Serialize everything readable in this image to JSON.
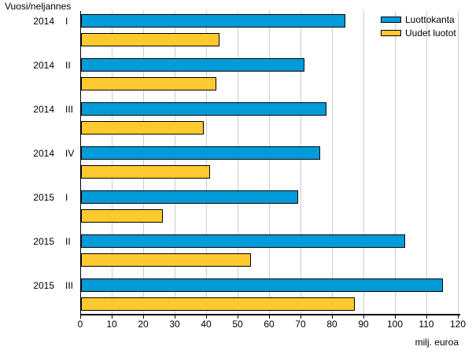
{
  "chart_data": {
    "type": "bar",
    "orientation": "horizontal",
    "title": "",
    "ylabel": "Vuosi/neljannes",
    "xlabel": "milj. euroa",
    "categories": [
      "2014 I",
      "2014 II",
      "2014 III",
      "2014 IV",
      "2015 I",
      "2015 II",
      "2015 III"
    ],
    "category_parts": [
      {
        "year": "2014",
        "quarter": "I"
      },
      {
        "year": "2014",
        "quarter": "II"
      },
      {
        "year": "2014",
        "quarter": "III"
      },
      {
        "year": "2014",
        "quarter": "IV"
      },
      {
        "year": "2015",
        "quarter": "I"
      },
      {
        "year": "2015",
        "quarter": "II"
      },
      {
        "year": "2015",
        "quarter": "III"
      }
    ],
    "series": [
      {
        "name": "Luottokanta",
        "color": "#009CDA",
        "values": [
          84,
          71,
          78,
          76,
          69,
          103,
          115
        ]
      },
      {
        "name": "Uudet luotot",
        "color": "#FFC930",
        "values": [
          44,
          43,
          39,
          41,
          26,
          54,
          87
        ]
      }
    ],
    "xlim": [
      0,
      120
    ],
    "xticks": [
      0,
      10,
      20,
      30,
      40,
      50,
      60,
      70,
      80,
      90,
      100,
      110,
      120
    ],
    "grid": true,
    "gridline_color": "#cccccc",
    "legend_position": "top-right",
    "bar_border_color": "#000000",
    "background_color": "#ffffff"
  }
}
